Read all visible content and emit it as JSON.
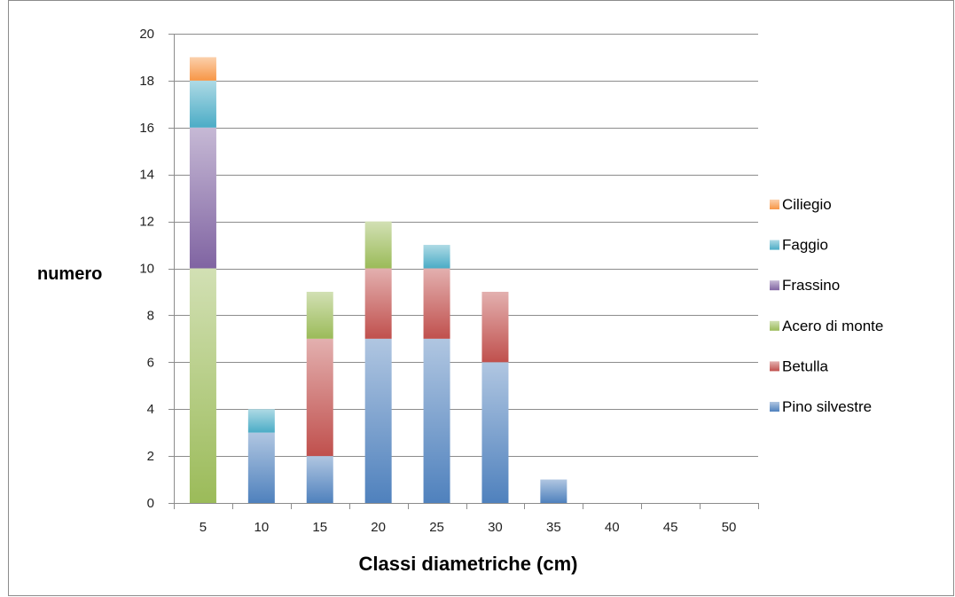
{
  "chart_data": {
    "type": "bar",
    "stacked": true,
    "title": "",
    "xlabel": "Classi diametriche (cm)",
    "ylabel": "numero",
    "ylim": [
      0,
      20
    ],
    "yticks": [
      0,
      2,
      4,
      6,
      8,
      10,
      12,
      14,
      16,
      18,
      20
    ],
    "grid": true,
    "legend_position": "right",
    "categories": [
      "5",
      "10",
      "15",
      "20",
      "25",
      "30",
      "35",
      "40",
      "45",
      "50"
    ],
    "series": [
      {
        "name": "Pino silvestre",
        "color": "#4f81bd",
        "values": [
          0,
          3,
          2,
          7,
          7,
          6,
          1,
          0,
          0,
          0
        ]
      },
      {
        "name": "Betulla",
        "color": "#c0504d",
        "values": [
          0,
          0,
          5,
          3,
          3,
          3,
          0,
          0,
          0,
          0
        ]
      },
      {
        "name": "Acero di monte",
        "color": "#9bbb59",
        "values": [
          10,
          0,
          2,
          2,
          0,
          0,
          0,
          0,
          0,
          0
        ]
      },
      {
        "name": "Frassino",
        "color": "#8064a2",
        "values": [
          6,
          0,
          0,
          0,
          0,
          0,
          0,
          0,
          0,
          0
        ]
      },
      {
        "name": "Faggio",
        "color": "#4bacc6",
        "values": [
          2,
          1,
          0,
          0,
          1,
          0,
          0,
          0,
          0,
          0
        ]
      },
      {
        "name": "Ciliegio",
        "color": "#f79646",
        "values": [
          1,
          0,
          0,
          0,
          0,
          0,
          0,
          0,
          0,
          0
        ]
      }
    ]
  }
}
